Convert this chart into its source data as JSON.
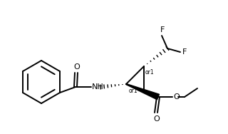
{
  "bg_color": "#ffffff",
  "line_color": "#000000",
  "line_width": 1.4,
  "font_size": 8,
  "fig_width": 3.2,
  "fig_height": 1.88,
  "dpi": 100,
  "labels": {
    "F1": "F",
    "F2": "F",
    "O_carbonyl_amide": "O",
    "O_ester": "O",
    "NH": "NH",
    "H": "H",
    "or1_top": "or1",
    "or1_bot": "or1"
  }
}
